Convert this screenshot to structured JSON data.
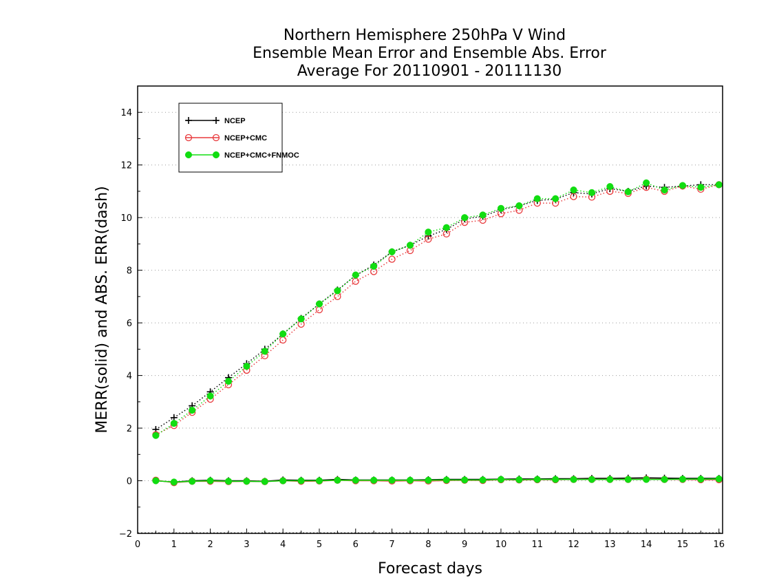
{
  "chart_data": {
    "type": "line",
    "title": [
      "Northern Hemisphere 250hPa V Wind",
      "Ensemble Mean Error and Ensemble Abs. Error",
      "Average For 20110901 - 20111130"
    ],
    "xlabel": "Forecast days",
    "ylabel": "MERR(solid) and ABS. ERR(dash)",
    "xlim": [
      0,
      16.1
    ],
    "ylim": [
      -2,
      15
    ],
    "xticks": [
      0,
      1,
      2,
      3,
      4,
      5,
      6,
      7,
      8,
      9,
      10,
      11,
      12,
      13,
      14,
      15,
      16
    ],
    "yticks": [
      -2,
      0,
      2,
      4,
      6,
      8,
      10,
      12,
      14
    ],
    "grid": "horizontal dotted",
    "legend_position": "top-left",
    "x": [
      0.5,
      1,
      1.5,
      2,
      2.5,
      3,
      3.5,
      4,
      4.5,
      5,
      5.5,
      6,
      6.5,
      7,
      7.5,
      8,
      8.5,
      9,
      9.5,
      10,
      10.5,
      11,
      11.5,
      12,
      12.5,
      13,
      13.5,
      14,
      14.5,
      15,
      15.5,
      16
    ],
    "series": [
      {
        "name": "NCEP",
        "color": "#000000",
        "marker": "plus",
        "merr": [
          0.0,
          -0.05,
          0.0,
          0.02,
          0.0,
          0.0,
          -0.02,
          0.03,
          0.02,
          0.02,
          0.05,
          0.03,
          0.03,
          0.03,
          0.03,
          0.04,
          0.05,
          0.05,
          0.05,
          0.06,
          0.07,
          0.07,
          0.08,
          0.08,
          0.09,
          0.09,
          0.1,
          0.11,
          0.1,
          0.09,
          0.09,
          0.09
        ],
        "abs_err": [
          1.95,
          2.4,
          2.85,
          3.38,
          3.92,
          4.45,
          5.0,
          5.58,
          6.17,
          6.72,
          7.25,
          7.8,
          8.2,
          8.7,
          8.95,
          9.3,
          9.55,
          9.95,
          10.05,
          10.3,
          10.45,
          10.65,
          10.7,
          10.95,
          10.9,
          11.1,
          11.0,
          11.2,
          11.15,
          11.2,
          11.25,
          11.25
        ]
      },
      {
        "name": "NCEP+CMC",
        "color": "#e8393c",
        "marker": "open-circle",
        "merr": [
          0.02,
          -0.07,
          -0.02,
          -0.02,
          -0.03,
          -0.02,
          -0.03,
          0.0,
          -0.02,
          -0.01,
          0.02,
          0.0,
          0.0,
          -0.01,
          0.0,
          -0.01,
          0.01,
          0.02,
          0.01,
          0.04,
          0.03,
          0.04,
          0.04,
          0.05,
          0.05,
          0.05,
          0.05,
          0.06,
          0.05,
          0.05,
          0.04,
          0.04
        ],
        "abs_err": [
          1.75,
          2.1,
          2.6,
          3.1,
          3.65,
          4.2,
          4.75,
          5.35,
          5.95,
          6.5,
          7.0,
          7.58,
          7.95,
          8.42,
          8.75,
          9.18,
          9.38,
          9.82,
          9.9,
          10.15,
          10.28,
          10.55,
          10.55,
          10.8,
          10.78,
          11.0,
          10.92,
          11.15,
          11.0,
          11.2,
          11.08,
          11.25
        ]
      },
      {
        "name": "NCEP+CMC+FNMOC",
        "color": "#11dd11",
        "marker": "filled-circle",
        "merr": [
          0.0,
          -0.05,
          -0.02,
          0.0,
          -0.02,
          -0.02,
          -0.03,
          0.0,
          0.0,
          0.0,
          0.02,
          0.02,
          0.02,
          0.02,
          0.02,
          0.02,
          0.03,
          0.03,
          0.03,
          0.05,
          0.04,
          0.05,
          0.05,
          0.05,
          0.05,
          0.05,
          0.05,
          0.05,
          0.05,
          0.06,
          0.06,
          0.07
        ],
        "abs_err": [
          1.72,
          2.18,
          2.68,
          3.22,
          3.78,
          4.35,
          4.92,
          5.58,
          6.15,
          6.72,
          7.22,
          7.82,
          8.15,
          8.7,
          8.95,
          9.45,
          9.62,
          10.0,
          10.1,
          10.35,
          10.45,
          10.72,
          10.72,
          11.05,
          10.95,
          11.18,
          10.98,
          11.32,
          11.05,
          11.22,
          11.15,
          11.25
        ]
      }
    ]
  }
}
